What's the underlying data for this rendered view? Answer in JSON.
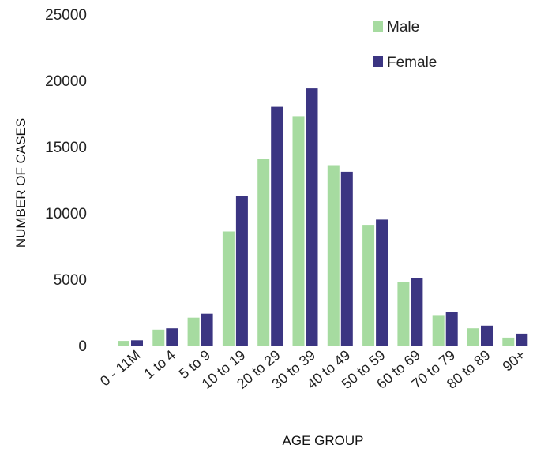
{
  "chart_data": {
    "type": "bar",
    "title": "",
    "xlabel": "AGE GROUP",
    "ylabel": "NUMBER OF CASES",
    "ylim": [
      0,
      25000
    ],
    "yticks": [
      "0",
      "5000",
      "10000",
      "15000",
      "20000",
      "25000"
    ],
    "categories": [
      "0 - 11M",
      "1 to 4",
      "5 to 9",
      "10 to 19",
      "20 to 29",
      "30 to 39",
      "40 to 49",
      "50 to 59",
      "60 to 69",
      "70 to 79",
      "80 to 89",
      "90+"
    ],
    "series": [
      {
        "name": "Male",
        "color": "#a6dba0",
        "values": [
          350,
          1200,
          2100,
          8600,
          14100,
          17300,
          13600,
          9100,
          4800,
          2300,
          1300,
          600
        ]
      },
      {
        "name": "Female",
        "color": "#3b3582",
        "values": [
          400,
          1300,
          2400,
          11300,
          18000,
          19400,
          13100,
          9500,
          5100,
          2500,
          1500,
          900
        ]
      }
    ],
    "legend_position": "top-right",
    "grid": false
  }
}
